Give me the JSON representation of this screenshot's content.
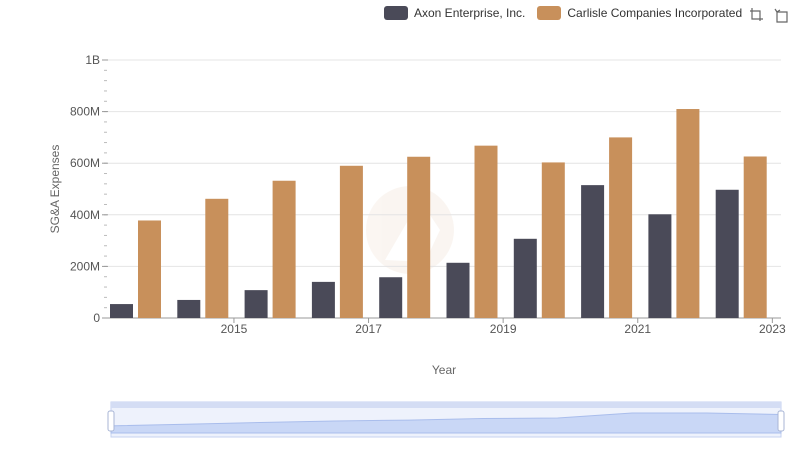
{
  "chart_data": {
    "type": "bar",
    "xlabel": "Year",
    "ylabel": "SG&A Expenses",
    "ylim": [
      0,
      1000000000
    ],
    "y_ticks": [
      {
        "value": 0,
        "label": "0"
      },
      {
        "value": 200000000,
        "label": "200M"
      },
      {
        "value": 400000000,
        "label": "400M"
      },
      {
        "value": 600000000,
        "label": "600M"
      },
      {
        "value": 800000000,
        "label": "800M"
      },
      {
        "value": 1000000000,
        "label": "1B"
      }
    ],
    "x_tick_labels": [
      {
        "year": 2015,
        "label": "2015"
      },
      {
        "year": 2017,
        "label": "2017"
      },
      {
        "year": 2019,
        "label": "2019"
      },
      {
        "year": 2021,
        "label": "2021"
      },
      {
        "year": 2023,
        "label": "2023"
      }
    ],
    "categories": [
      2014,
      2015,
      2016,
      2017,
      2018,
      2019,
      2020,
      2021,
      2022,
      2023
    ],
    "series": [
      {
        "name": "Axon Enterprise, Inc.",
        "color": "#4a4a58",
        "values": [
          54000000,
          70000000,
          108000000,
          140000000,
          158000000,
          214000000,
          307000000,
          515000000,
          402000000,
          497000000
        ]
      },
      {
        "name": "Carlisle Companies Incorporated",
        "color": "#c8905b",
        "values": [
          378000000,
          462000000,
          532000000,
          590000000,
          625000000,
          668000000,
          603000000,
          700000000,
          810000000,
          626000000
        ]
      }
    ],
    "legend_position": "top-right",
    "grid": true
  },
  "toolbar": {
    "icons": [
      "zoom-icon",
      "restore-icon"
    ]
  },
  "slider": {
    "start": 0,
    "end": 1
  }
}
